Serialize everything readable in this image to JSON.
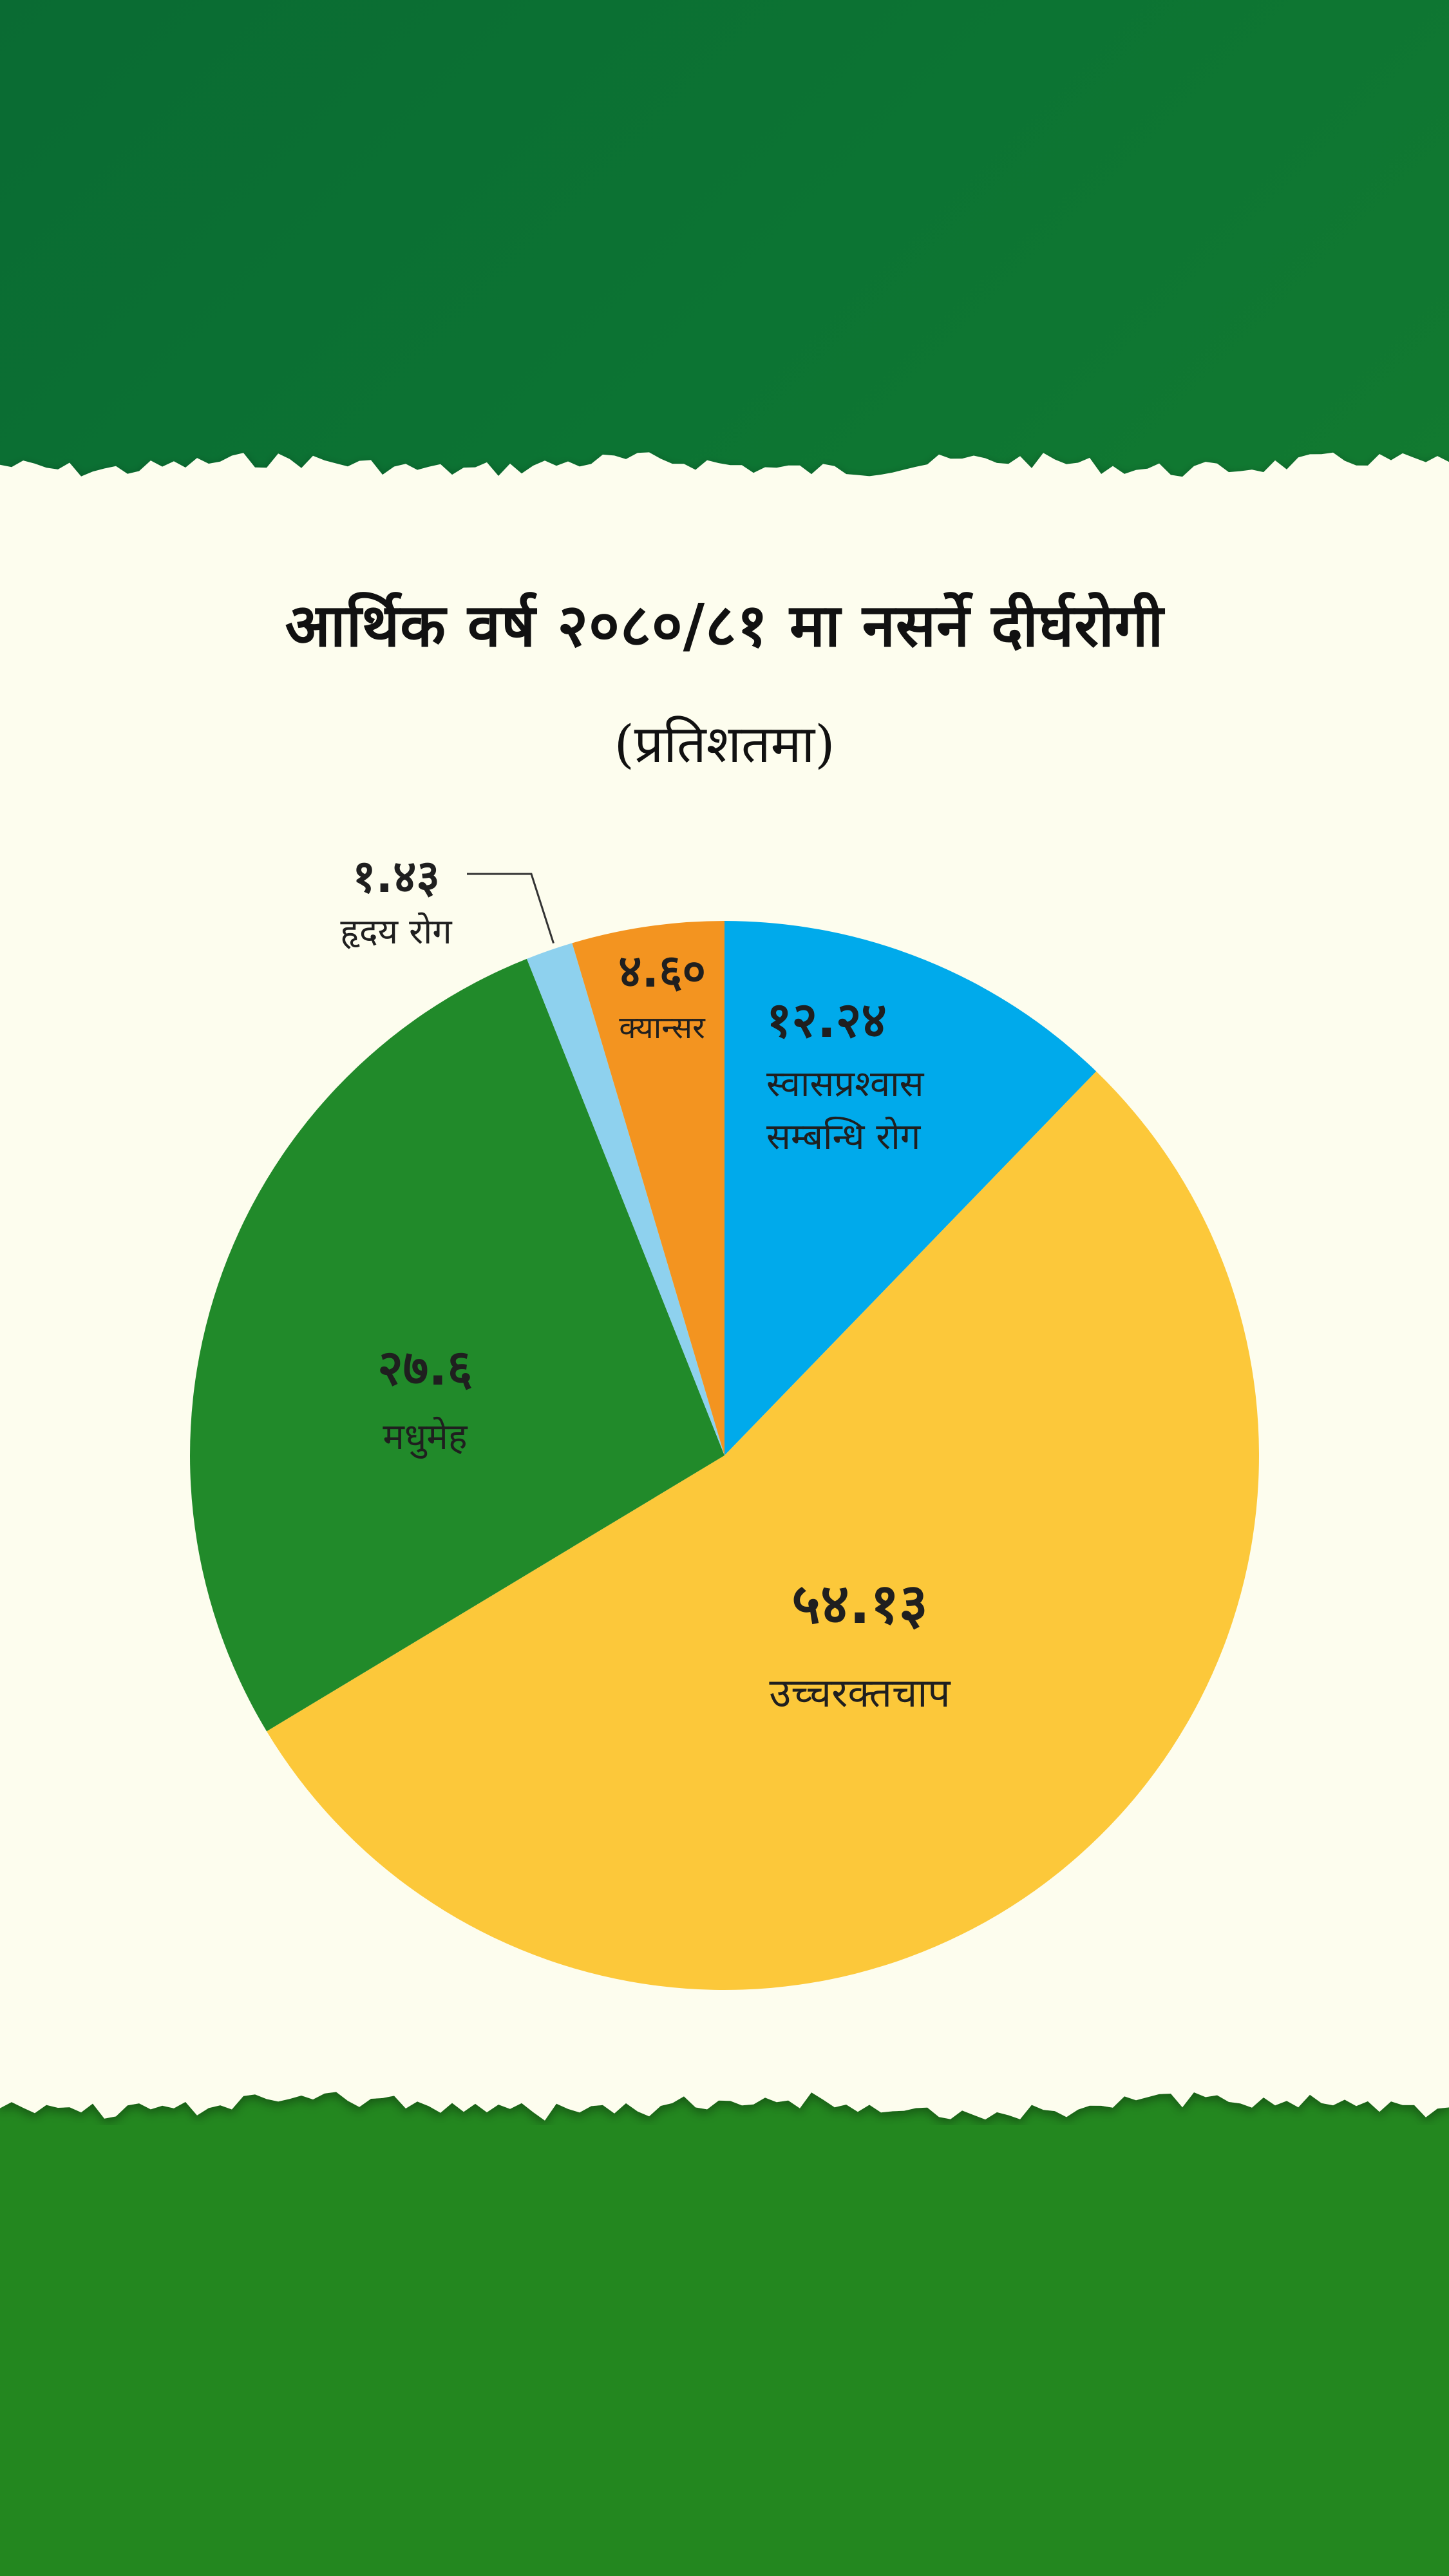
{
  "title": "आर्थिक वर्ष २०८०/८१ मा नसर्ने दीर्घरोगी",
  "subtitle": "(प्रतिशतमा)",
  "colors": {
    "top_band": "#0b6e33",
    "bottom_band": "#23871f",
    "paper": "#fdfdee"
  },
  "chart_data": {
    "type": "pie",
    "title": "आर्थिक वर्ष २०८०/८१ मा नसर्ने दीर्घरोगी",
    "subtitle": "(प्रतिशतमा)",
    "start": "12 o'clock",
    "direction": "clockwise",
    "slices": [
      {
        "name": "स्वासप्रश्वास सम्बन्धि रोग",
        "name_lines": [
          "स्वासप्रश्वास",
          "सम्बन्धि रोग"
        ],
        "value": 12.24,
        "value_label": "१२.२४",
        "color": "#00aaeb"
      },
      {
        "name": "उच्चरक्तचाप",
        "name_lines": [
          "उच्चरक्तचाप"
        ],
        "value": 54.13,
        "value_label": "५४.१३",
        "color": "#fcc83a"
      },
      {
        "name": "मधुमेह",
        "name_lines": [
          "मधुमेह"
        ],
        "value": 27.6,
        "value_label": "२७.६",
        "color": "#218a2a"
      },
      {
        "name": "हृदय रोग",
        "name_lines": [
          "हृदय रोग"
        ],
        "value": 1.43,
        "value_label": "१.४३",
        "color": "#8ed1ee"
      },
      {
        "name": "क्यान्सर",
        "name_lines": [
          "क्यान्सर"
        ],
        "value": 4.6,
        "value_label": "४.६०",
        "color": "#f39420"
      }
    ]
  }
}
